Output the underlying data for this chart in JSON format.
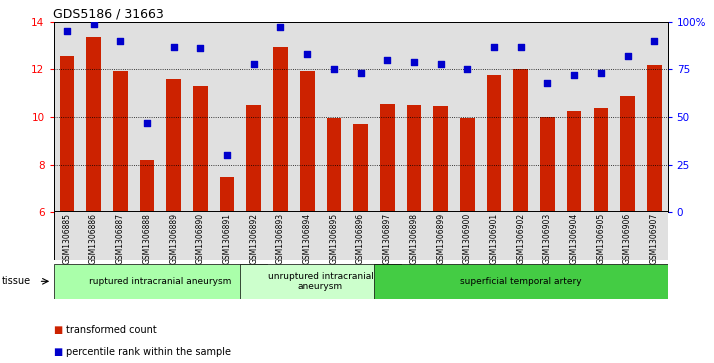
{
  "title": "GDS5186 / 31663",
  "samples": [
    "GSM1306885",
    "GSM1306886",
    "GSM1306887",
    "GSM1306888",
    "GSM1306889",
    "GSM1306890",
    "GSM1306891",
    "GSM1306892",
    "GSM1306893",
    "GSM1306894",
    "GSM1306895",
    "GSM1306896",
    "GSM1306897",
    "GSM1306898",
    "GSM1306899",
    "GSM1306900",
    "GSM1306901",
    "GSM1306902",
    "GSM1306903",
    "GSM1306904",
    "GSM1306905",
    "GSM1306906",
    "GSM1306907"
  ],
  "transformed_count": [
    12.55,
    13.35,
    11.95,
    8.2,
    11.6,
    11.3,
    7.5,
    10.5,
    12.95,
    11.95,
    9.95,
    9.7,
    10.55,
    10.5,
    10.45,
    9.95,
    11.75,
    12.0,
    10.0,
    10.25,
    10.4,
    10.9,
    12.2
  ],
  "percentile_rank": [
    95,
    99,
    90,
    47,
    87,
    86,
    30,
    78,
    97,
    83,
    75,
    73,
    80,
    79,
    78,
    75,
    87,
    87,
    68,
    72,
    73,
    82,
    90
  ],
  "ylim_left": [
    6,
    14
  ],
  "ylim_right": [
    0,
    100
  ],
  "yticks_left": [
    6,
    8,
    10,
    12,
    14
  ],
  "yticks_right": [
    0,
    25,
    50,
    75,
    100
  ],
  "ytick_labels_right": [
    "0",
    "25",
    "50",
    "75",
    "100%"
  ],
  "bar_color": "#cc2200",
  "dot_color": "#0000cc",
  "bg_color": "#e0e0e0",
  "tissue_groups": [
    {
      "label": "ruptured intracranial aneurysm",
      "start": 0,
      "end": 7,
      "color": "#aaffaa"
    },
    {
      "label": "unruptured intracranial\naneurysm",
      "start": 7,
      "end": 12,
      "color": "#ccffcc"
    },
    {
      "label": "superficial temporal artery",
      "start": 12,
      "end": 22,
      "color": "#44cc44"
    }
  ],
  "legend_items": [
    {
      "label": "transformed count",
      "color": "#cc2200"
    },
    {
      "label": "percentile rank within the sample",
      "color": "#0000cc"
    }
  ]
}
